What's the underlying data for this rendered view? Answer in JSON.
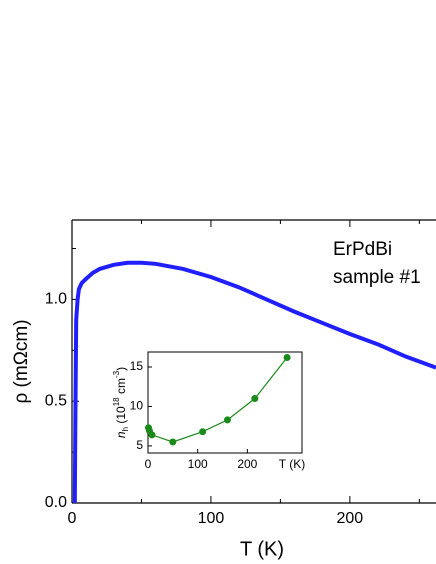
{
  "chart_data": [
    {
      "type": "line",
      "x_label": "T  (K)",
      "y_label": "ρ  (mΩcm)",
      "annotations": [
        "ErPdBi",
        "sample #1"
      ],
      "xlim": [
        0,
        262
      ],
      "ylim": [
        0,
        1.39
      ],
      "xticks": [
        0,
        100,
        200
      ],
      "xminor": [
        50,
        150,
        250
      ],
      "yticks": [
        {
          "value": 0,
          "label": "0.0"
        },
        {
          "value": 0.5,
          "label": "0.5"
        },
        {
          "value": 1,
          "label": "1.0"
        }
      ],
      "yminor": [
        0.25,
        0.75,
        1.25
      ],
      "series": [
        {
          "color": "#1f1fff",
          "x": [
            2,
            2.5,
            3,
            4,
            5,
            7,
            10,
            15,
            20,
            30,
            40,
            50,
            60,
            80,
            100,
            120,
            140,
            160,
            180,
            200,
            220,
            240,
            262
          ],
          "values": [
            0,
            0.5,
            0.9,
            1.0,
            1.05,
            1.08,
            1.1,
            1.13,
            1.15,
            1.17,
            1.18,
            1.18,
            1.175,
            1.15,
            1.11,
            1.06,
            1.0,
            0.94,
            0.885,
            0.83,
            0.78,
            0.72,
            0.665
          ]
        }
      ]
    },
    {
      "type": "line",
      "inset": true,
      "x_label": "T (K)",
      "y_label_parts": [
        "n",
        "h",
        " (10",
        "18",
        " cm",
        "-3",
        ")"
      ],
      "xlim": [
        0,
        310
      ],
      "ylim": [
        4.1,
        16.9
      ],
      "xticks": [
        0,
        100,
        200
      ],
      "yticks": [
        5,
        10,
        15
      ],
      "series": [
        {
          "color": "#1a8a1a",
          "markers": true,
          "x": [
            1,
            3,
            8,
            50,
            110,
            160,
            215,
            280
          ],
          "values": [
            7.3,
            6.9,
            6.4,
            5.5,
            6.8,
            8.3,
            11.0,
            16.2
          ]
        }
      ]
    }
  ]
}
